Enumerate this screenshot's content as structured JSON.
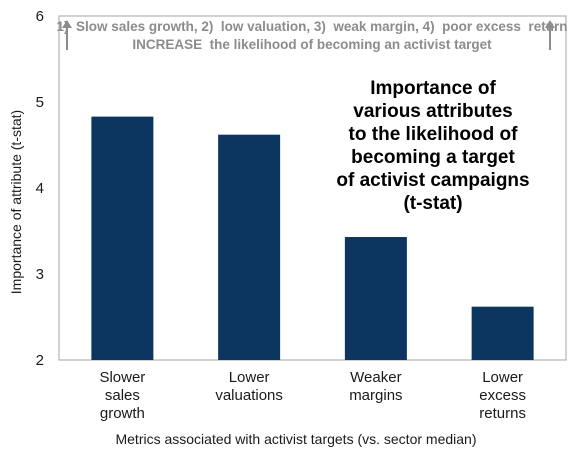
{
  "chart_data": {
    "type": "bar",
    "title_lines": [
      "Importance of",
      "various attributes",
      "to the likelihood of",
      "becoming a target",
      "of activist campaigns",
      "(t-stat)"
    ],
    "banner_lines": [
      "1)  Slow sales growth, 2)  low valuation, 3)  weak margin, 4)  poor excess  return",
      "INCREASE  the likelihood of becoming an activist target"
    ],
    "categories": [
      [
        "Slower",
        "sales",
        "growth"
      ],
      [
        "Lower",
        "valuations"
      ],
      [
        "Weaker",
        "margins"
      ],
      [
        "Lower",
        "excess",
        "returns"
      ]
    ],
    "values": [
      4.83,
      4.62,
      3.43,
      2.62
    ],
    "ylim": [
      2,
      6
    ],
    "yticks": [
      "2",
      "3",
      "4",
      "5",
      "6"
    ],
    "ylabel": "Importance of attribute (t-stat)",
    "xlabel": "Metrics associated with activist targets (vs. sector median)",
    "bar_color": "#0c3660",
    "banner_color": "#8c8c8c",
    "grid": false
  }
}
